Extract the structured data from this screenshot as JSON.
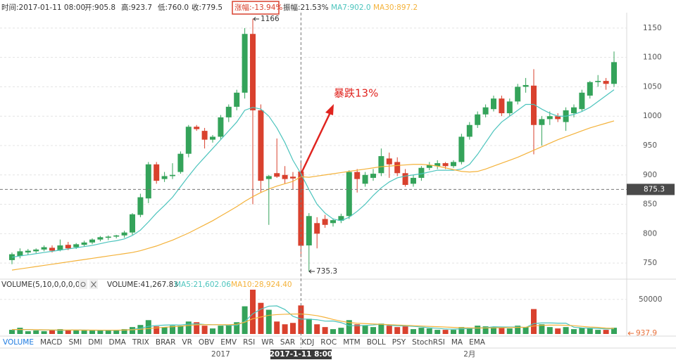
{
  "header": {
    "items": [
      "时间:2017-01-11 08:00",
      "开:905.8",
      "高:923.7",
      "低:760.0",
      "收:779.5",
      "涨幅:-13.94%",
      "振幅:21.53%"
    ]
  },
  "tabs": [
    "VOLUME",
    "MACD",
    "SMI",
    "DMI",
    "DMA",
    "TRIX",
    "BRAR",
    "VR",
    "OBV",
    "EMV",
    "RSI",
    "WR",
    "SAR",
    "KDJ",
    "ROC",
    "MTM",
    "BOLL",
    "PSY",
    "StochRSI",
    "MA",
    "EMA"
  ],
  "chart_data": [
    {
      "type": "candlestick",
      "categories": [
        null,
        null,
        null,
        null,
        null,
        null,
        null,
        null,
        null,
        null,
        null,
        null,
        null,
        null,
        null,
        null,
        null,
        null,
        null,
        null,
        null,
        null,
        null,
        null,
        null,
        null,
        "2017",
        null,
        null,
        null,
        null,
        null,
        null,
        null,
        null,
        null,
        null,
        null,
        null,
        null,
        null,
        null,
        null,
        null,
        null,
        null,
        null,
        null,
        null,
        null,
        null,
        null,
        null,
        null,
        null,
        null,
        null,
        "2月",
        null,
        null,
        null,
        null,
        null,
        null,
        null,
        null,
        null,
        null,
        null,
        null,
        null,
        null,
        null,
        null,
        null,
        null
      ],
      "open": [
        755,
        762,
        768,
        770,
        773,
        776,
        772,
        781,
        777,
        781,
        785,
        790,
        793,
        795,
        797,
        802,
        832,
        860,
        918,
        893,
        898,
        905,
        936,
        982,
        975,
        960,
        965,
        998,
        1016,
        1040,
        1140,
        1010,
        893,
        903,
        900,
        897,
        905.8,
        780,
        818,
        825,
        818,
        822,
        830,
        905,
        885,
        895,
        903,
        928,
        922,
        903,
        885,
        895,
        912,
        915,
        920,
        915,
        922,
        965,
        985,
        1003,
        1012,
        1030,
        1005,
        1025,
        1050,
        1052,
        985,
        995,
        1000,
        990,
        1005,
        1012,
        1035,
        1058,
        1060,
        1055
      ],
      "high": [
        768,
        775,
        774,
        775,
        780,
        780,
        790,
        786,
        784,
        788,
        792,
        796,
        797,
        798,
        805,
        835,
        868,
        922,
        922,
        905,
        920,
        940,
        985,
        985,
        980,
        968,
        1002,
        1020,
        1045,
        1150,
        1166,
        1020,
        900,
        962,
        915,
        905,
        923.7,
        835,
        828,
        832,
        826,
        834,
        908,
        910,
        905,
        910,
        945,
        938,
        930,
        910,
        900,
        915,
        922,
        925,
        922,
        925,
        970,
        990,
        1008,
        1020,
        1035,
        1035,
        1030,
        1055,
        1065,
        1080,
        1000,
        1008,
        1005,
        1015,
        1020,
        1045,
        1060,
        1070,
        1065,
        1110
      ],
      "low": [
        748,
        758,
        764,
        767,
        770,
        768,
        770,
        772,
        774,
        778,
        782,
        787,
        789,
        792,
        793,
        798,
        828,
        852,
        885,
        888,
        893,
        902,
        930,
        975,
        945,
        955,
        960,
        990,
        1010,
        1030,
        850,
        870,
        815,
        895,
        885,
        875,
        760,
        735.3,
        775,
        810,
        812,
        818,
        825,
        870,
        880,
        890,
        898,
        895,
        898,
        880,
        880,
        890,
        908,
        910,
        910,
        912,
        918,
        960,
        980,
        998,
        1008,
        1000,
        1000,
        1020,
        1040,
        935,
        950,
        985,
        990,
        975,
        998,
        1008,
        1030,
        1050,
        1045,
        1050
      ],
      "close": [
        765,
        770,
        771,
        773,
        777,
        771,
        780,
        775,
        782,
        785,
        790,
        794,
        795,
        797,
        802,
        833,
        862,
        918,
        890,
        898,
        900,
        936,
        982,
        978,
        960,
        965,
        998,
        1016,
        1040,
        1140,
        1010,
        890,
        898,
        897,
        893,
        894,
        779.5,
        830,
        800,
        815,
        823,
        830,
        905,
        893,
        900,
        902,
        932,
        918,
        903,
        883,
        895,
        912,
        917,
        920,
        915,
        922,
        965,
        985,
        1003,
        1015,
        1030,
        1005,
        1025,
        1050,
        1053,
        985,
        995,
        1000,
        995,
        1010,
        1015,
        1040,
        1058,
        1060,
        1055,
        1092
      ],
      "up_color": "#34a35a",
      "down_color": "#d9412e",
      "lines": [
        {
          "color": "#4cc4bd",
          "values": [
            760,
            762,
            764,
            766,
            768,
            770,
            772,
            774,
            776,
            778,
            780,
            783,
            786,
            788,
            791,
            797,
            806,
            820,
            835,
            848,
            862,
            880,
            898,
            915,
            930,
            945,
            960,
            975,
            990,
            1010,
            1015,
            1012,
            1000,
            980,
            955,
            925,
            902,
            875,
            850,
            835,
            825,
            822,
            828,
            838,
            850,
            865,
            878,
            888,
            895,
            898,
            900,
            902,
            905,
            908,
            908,
            908,
            910,
            918,
            935,
            955,
            975,
            990,
            1000,
            1010,
            1020,
            1020,
            1012,
            1005,
            1000,
            1000,
            1003,
            1008,
            1015,
            1025,
            1035,
            1045
          ]
        },
        {
          "color": "#f4b23a",
          "values": [
            738,
            740,
            742,
            744,
            746,
            748,
            750,
            752,
            754,
            756,
            758,
            760,
            762,
            764,
            766,
            768,
            771,
            775,
            779,
            784,
            789,
            795,
            801,
            808,
            815,
            822,
            830,
            838,
            846,
            855,
            863,
            870,
            876,
            881,
            885,
            889,
            897,
            896,
            898,
            900,
            902,
            904,
            906,
            908,
            910,
            912,
            914,
            915,
            916,
            917,
            918,
            918,
            917,
            915,
            912,
            909,
            906,
            905,
            906,
            910,
            915,
            920,
            925,
            930,
            936,
            942,
            948,
            954,
            960,
            965,
            970,
            975,
            980,
            984,
            988,
            992
          ]
        }
      ],
      "legend": [
        "MA7:902.0",
        "MA30:897.2"
      ],
      "ylim": [
        725,
        1175
      ],
      "yticks": [
        750,
        800,
        850,
        900,
        950,
        1000,
        1050,
        1100,
        1150
      ],
      "grid": true,
      "crosshair_x_label": "2017-1-11 8:00",
      "crosshair_value": 875.3,
      "high_label": 1166,
      "low_label": 735.3,
      "callout": "暴跌13%"
    },
    {
      "type": "bar",
      "title": "VOLUME(5,10,0,0,0,0)",
      "legend": [
        "VOLUME:41,267.83",
        "MA5:21,602.06",
        "MA10:28,924.40"
      ],
      "values": [
        6000,
        9000,
        4000,
        5000,
        4000,
        6000,
        7000,
        6000,
        5000,
        5000,
        5000,
        5000,
        6000,
        5000,
        7000,
        10000,
        13000,
        20000,
        11000,
        10000,
        12000,
        12000,
        18000,
        17000,
        12000,
        8000,
        12000,
        13000,
        17000,
        40000,
        64000,
        45000,
        35000,
        18000,
        14000,
        16000,
        41267.83,
        22000,
        14000,
        10000,
        7000,
        9000,
        20000,
        14000,
        12000,
        10000,
        15000,
        12000,
        10000,
        11000,
        7000,
        9000,
        8000,
        6000,
        6000,
        6000,
        10000,
        9000,
        12000,
        11000,
        10000,
        9000,
        8000,
        12000,
        10000,
        36000,
        14000,
        10000,
        8000,
        10000,
        7000,
        9000,
        8000,
        6000,
        6000,
        9000
      ],
      "lines": [
        {
          "color": "#4cc4bd",
          "values": [
            6000,
            6500,
            6300,
            6000,
            5600,
            5800,
            5200,
            5600,
            5800,
            5800,
            5400,
            5200,
            5200,
            5200,
            5600,
            6600,
            8200,
            11000,
            12200,
            12800,
            13200,
            13000,
            14200,
            14600,
            13800,
            13400,
            13400,
            12400,
            12400,
            18000,
            29200,
            35800,
            40200,
            40600,
            35400,
            25600,
            21602,
            21400,
            20600,
            18600,
            18800,
            16400,
            12000,
            12000,
            12400,
            13000,
            14200,
            12600,
            11800,
            11600,
            11000,
            10200,
            9000,
            8200,
            7200,
            7000,
            7400,
            7800,
            8600,
            9000,
            10400,
            10200,
            10000,
            10000,
            9400,
            15000,
            16000,
            16000,
            15600,
            15600,
            9800,
            8800,
            8400,
            8000,
            7200,
            7600
          ]
        },
        {
          "color": "#f4b23a",
          "values": [
            6500,
            6500,
            6400,
            6200,
            6000,
            5900,
            5800,
            5700,
            5700,
            5600,
            5600,
            5500,
            5400,
            5500,
            5700,
            6100,
            6800,
            7800,
            8800,
            9700,
            10500,
            11300,
            12300,
            13200,
            13500,
            13400,
            13500,
            13300,
            14000,
            17000,
            22000,
            24500,
            27000,
            28000,
            28500,
            28800,
            28924,
            28000,
            26500,
            24000,
            21000,
            18500,
            16500,
            15500,
            15000,
            14500,
            14000,
            13500,
            13000,
            12500,
            12000,
            11500,
            11000,
            10500,
            10000,
            9500,
            9000,
            8800,
            8600,
            8700,
            8800,
            9000,
            9300,
            9500,
            9800,
            11500,
            12500,
            12800,
            12800,
            12600,
            12000,
            11000,
            10000,
            9500,
            8500,
            8000
          ]
        }
      ],
      "ylim": [
        0,
        65000
      ],
      "yticks": [
        50000
      ],
      "grid": true,
      "marker_value": 937.9
    }
  ]
}
